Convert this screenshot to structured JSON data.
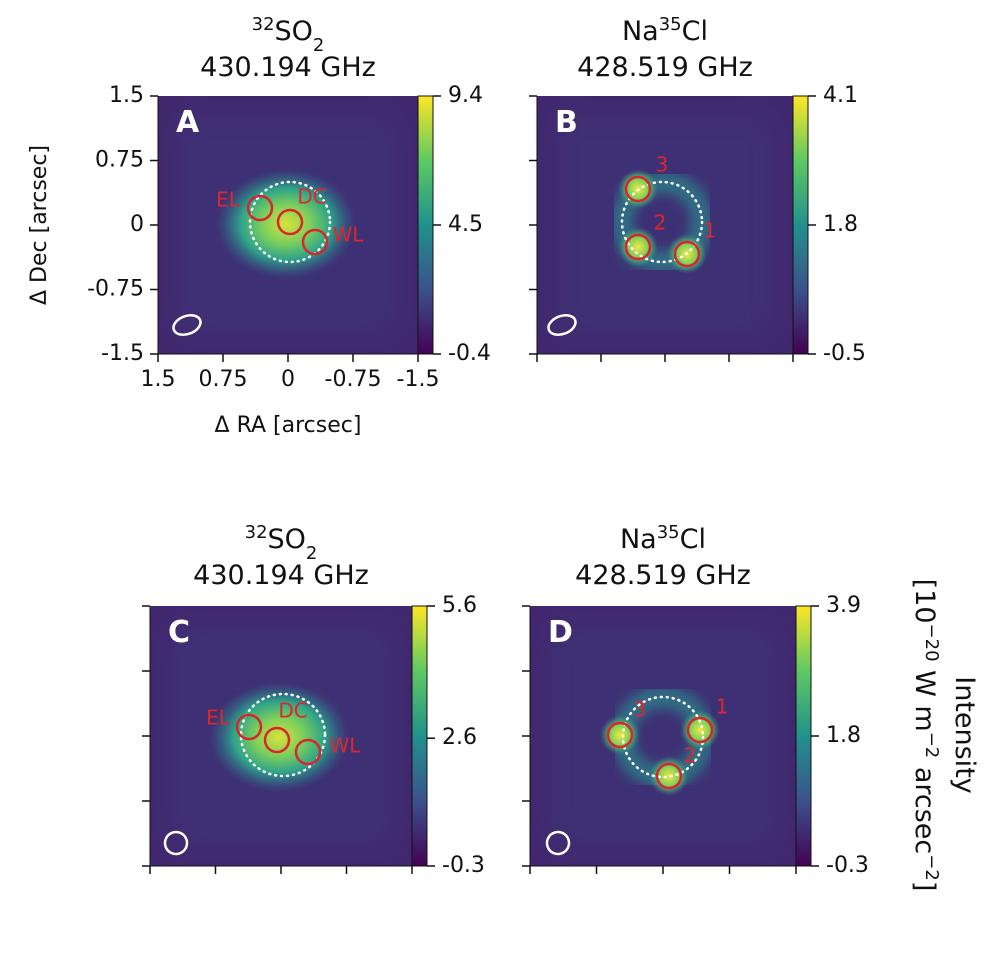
{
  "chart_data": [
    {
      "type": "image",
      "panel": "A",
      "title": {
        "isotope": "32",
        "molecule": "SO",
        "subscript": "2",
        "frequency": "430.194 GHz"
      },
      "clim": [
        -0.4,
        9.4
      ],
      "cticks": [
        -0.4,
        4.5,
        9.4
      ],
      "xlim": [
        1.5,
        -1.5
      ],
      "xticks": [
        1.5,
        0.75,
        0,
        -0.75,
        -1.5
      ],
      "ylim": [
        -1.5,
        1.5
      ],
      "yticks": [
        1.5,
        0.75,
        0,
        -0.75,
        -1.5
      ],
      "xlabel": "Δ RA [arcsec]",
      "ylabel": "Δ Dec [arcsec]",
      "regions": [
        "EL",
        "DC",
        "WL"
      ]
    },
    {
      "type": "image",
      "panel": "B",
      "title": {
        "isotope": "35",
        "molecule": "Na",
        "element": "Cl",
        "frequency": "428.519 GHz"
      },
      "clim": [
        -0.5,
        4.1
      ],
      "cticks": [
        -0.5,
        1.8,
        4.1
      ],
      "regions": [
        "3",
        "2",
        "1"
      ]
    },
    {
      "type": "image",
      "panel": "C",
      "title": {
        "isotope": "32",
        "molecule": "SO",
        "subscript": "2",
        "frequency": "430.194 GHz"
      },
      "clim": [
        -0.3,
        5.6
      ],
      "cticks": [
        -0.3,
        2.6,
        5.6
      ],
      "regions": [
        "EL",
        "DC",
        "WL"
      ]
    },
    {
      "type": "image",
      "panel": "D",
      "title": {
        "isotope": "35",
        "molecule": "Na",
        "element": "Cl",
        "frequency": "428.519 GHz"
      },
      "clim": [
        -0.3,
        3.9
      ],
      "cticks": [
        -0.3,
        1.8,
        3.9
      ],
      "regions": [
        "3",
        "1",
        "2"
      ]
    }
  ],
  "colorbar_label": {
    "title": "Intensity",
    "parts": [
      "[10",
      "−20",
      " W m",
      "−2",
      " arcsec",
      "−2",
      "]"
    ]
  }
}
